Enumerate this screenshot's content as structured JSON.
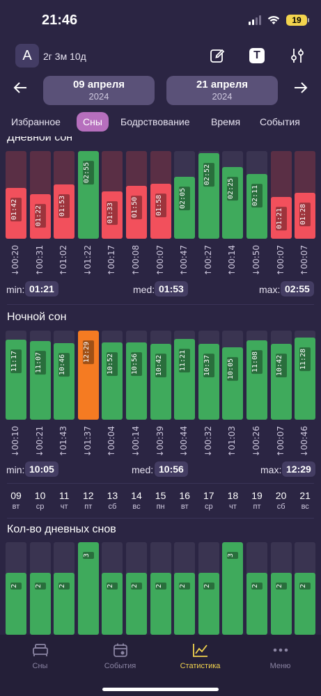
{
  "status": {
    "time": "21:46",
    "battery": "19"
  },
  "header": {
    "avatar_letter": "A",
    "age": "2г 3м 10д"
  },
  "dates": {
    "from_day": "09 апреля",
    "from_year": "2024",
    "to_day": "21 апреля",
    "to_year": "2024"
  },
  "tabs": [
    "Избранное",
    "Сны",
    "Бодрствование",
    "Время",
    "События"
  ],
  "active_tab": "Сны",
  "colors": {
    "green": "#3faa5c",
    "red": "#f2505c",
    "orange": "#f57b22",
    "track": "#3a3451",
    "track_red": "#5a2f45"
  },
  "day_sleep": {
    "title": "Дневной сон",
    "values": [
      "01:42",
      "01:22",
      "01:53",
      "02:55",
      "01:33",
      "01:50",
      "01:58",
      "02:05",
      "02:52",
      "02:25",
      "02:11",
      "01:21",
      "01:28"
    ],
    "ratios": [
      0.58,
      0.51,
      0.62,
      1.0,
      0.54,
      0.6,
      0.63,
      0.71,
      0.98,
      0.82,
      0.74,
      0.48,
      0.52
    ],
    "status": [
      "red",
      "red",
      "red",
      "green",
      "red",
      "red",
      "red",
      "green",
      "green",
      "green",
      "green",
      "red",
      "red"
    ],
    "times": [
      "↓00:20",
      "↑00:31",
      "↑01:02",
      "↓01:22",
      "↑00:17",
      "↑00:08",
      "↑00:07",
      "↑00:47",
      "↑00:27",
      "↑00:14",
      "↓00:50",
      "↑00:07",
      "↑00:07"
    ],
    "min_label": "min:",
    "min": "01:21",
    "med_label": "med:",
    "med": "01:53",
    "max_label": "max:",
    "max": "02:55"
  },
  "night_sleep": {
    "title": "Ночной сон",
    "values": [
      "11:17",
      "11:07",
      "10:46",
      "12:29",
      "10:52",
      "10:56",
      "10:42",
      "11:21",
      "10:37",
      "10:05",
      "11:08",
      "10:42",
      "11:28"
    ],
    "ratios": [
      0.9,
      0.88,
      0.86,
      1.0,
      0.87,
      0.87,
      0.85,
      0.91,
      0.85,
      0.81,
      0.89,
      0.85,
      0.92
    ],
    "status": [
      "green",
      "green",
      "green",
      "orange",
      "green",
      "green",
      "green",
      "green",
      "green",
      "green",
      "green",
      "green",
      "green"
    ],
    "times": [
      "↓00:10",
      "↓00:21",
      "↑01:43",
      "↓01:37",
      "↑00:04",
      "↓00:14",
      "↓00:39",
      "↓00:44",
      "↓00:32",
      "↑01:03",
      "↓00:26",
      "↑00:07",
      "↓00:46"
    ],
    "min_label": "min:",
    "min": "10:05",
    "med_label": "med:",
    "med": "10:56",
    "max_label": "max:",
    "max": "12:29"
  },
  "days": [
    {
      "n": "09",
      "w": "вт"
    },
    {
      "n": "10",
      "w": "ср"
    },
    {
      "n": "11",
      "w": "чт"
    },
    {
      "n": "12",
      "w": "пт"
    },
    {
      "n": "13",
      "w": "сб"
    },
    {
      "n": "14",
      "w": "вс"
    },
    {
      "n": "15",
      "w": "пн"
    },
    {
      "n": "16",
      "w": "вт"
    },
    {
      "n": "17",
      "w": "ср"
    },
    {
      "n": "18",
      "w": "чт"
    },
    {
      "n": "19",
      "w": "пт"
    },
    {
      "n": "20",
      "w": "сб"
    },
    {
      "n": "21",
      "w": "вс"
    }
  ],
  "nap_count": {
    "title": "Кол-во дневных снов",
    "values": [
      "2",
      "2",
      "2",
      "3",
      "2",
      "2",
      "2",
      "2",
      "2",
      "3",
      "2",
      "2",
      "2"
    ],
    "ratios": [
      0.67,
      0.67,
      0.67,
      1.0,
      0.67,
      0.67,
      0.67,
      0.67,
      0.67,
      1.0,
      0.67,
      0.67,
      0.67
    ]
  },
  "nav": [
    {
      "label": "Сны",
      "icon": "bed-icon"
    },
    {
      "label": "События",
      "icon": "calendar-icon"
    },
    {
      "label": "Статистика",
      "icon": "chart-icon"
    },
    {
      "label": "Меню",
      "icon": "more-icon"
    }
  ],
  "active_nav": "Статистика"
}
